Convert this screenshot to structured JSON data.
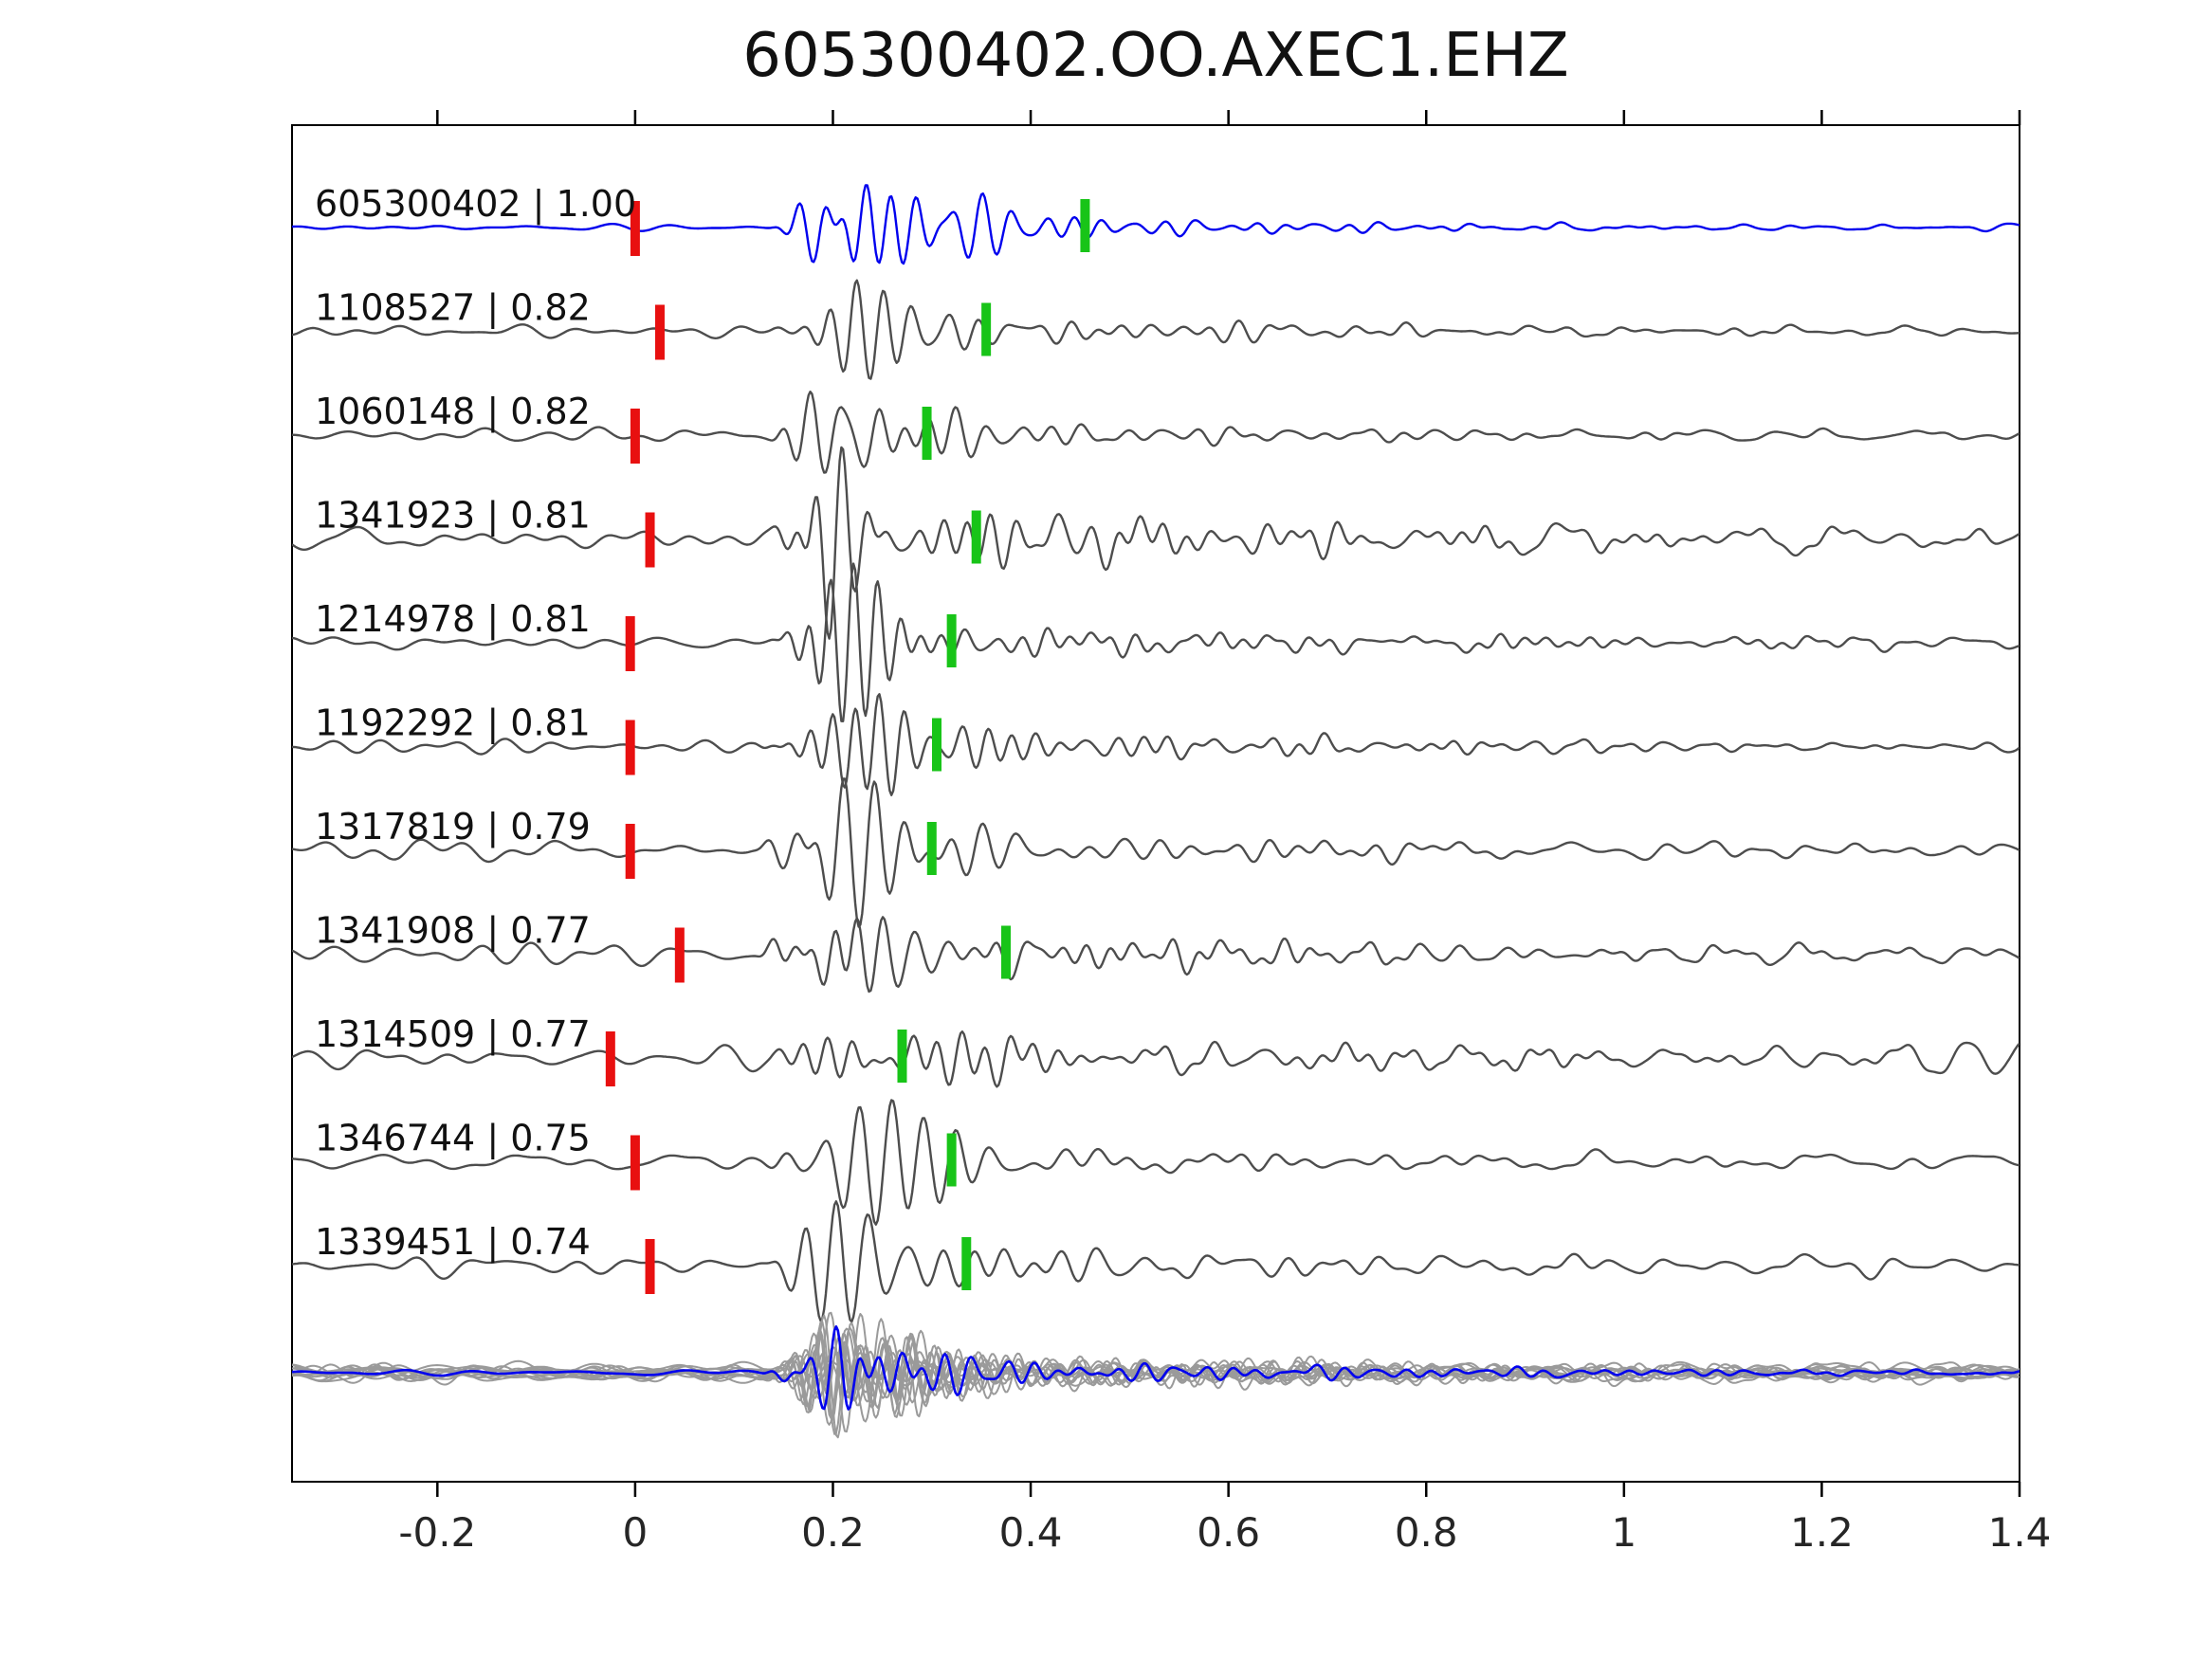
{
  "chart_data": {
    "type": "line",
    "title": "605300402.OO.AXEC1.EHZ",
    "xlabel": "",
    "ylabel": "",
    "xlim": [
      -0.347,
      1.4
    ],
    "x_ticks": [
      -0.2,
      0,
      0.2,
      0.4,
      0.6,
      0.8,
      1,
      1.2,
      1.4
    ],
    "x_tick_labels": [
      "-0.2",
      "0",
      "0.2",
      "0.4",
      "0.6",
      "0.8",
      "1",
      "1.2",
      "1.4"
    ],
    "grid": false,
    "legend": "none",
    "colors": {
      "template_trace": "#0000ee",
      "member_trace": "#4d4d4d",
      "overlay_member": "#9a9a9a",
      "red_pick": "#e81010",
      "green_pick": "#18c418",
      "axis": "#000000",
      "tick_label": "#262626"
    },
    "traces": [
      {
        "id": "605300402",
        "correlation": "1.00",
        "label": "605300402 | 1.00",
        "is_template": true,
        "red_pick": 0.0,
        "green_pick": 0.455
      },
      {
        "id": "1108527",
        "correlation": "0.82",
        "label": "1108527 | 0.82",
        "is_template": false,
        "red_pick": 0.025,
        "green_pick": 0.355
      },
      {
        "id": "1060148",
        "correlation": "0.82",
        "label": "1060148 | 0.82",
        "is_template": false,
        "red_pick": 0.0,
        "green_pick": 0.295
      },
      {
        "id": "1341923",
        "correlation": "0.81",
        "label": "1341923 | 0.81",
        "is_template": false,
        "red_pick": 0.015,
        "green_pick": 0.345
      },
      {
        "id": "1214978",
        "correlation": "0.81",
        "label": "1214978 | 0.81",
        "is_template": false,
        "red_pick": -0.005,
        "green_pick": 0.32
      },
      {
        "id": "1192292",
        "correlation": "0.81",
        "label": "1192292 | 0.81",
        "is_template": false,
        "red_pick": -0.005,
        "green_pick": 0.305
      },
      {
        "id": "1317819",
        "correlation": "0.79",
        "label": "1317819 | 0.79",
        "is_template": false,
        "red_pick": -0.005,
        "green_pick": 0.3
      },
      {
        "id": "1341908",
        "correlation": "0.77",
        "label": "1341908 | 0.77",
        "is_template": false,
        "red_pick": 0.045,
        "green_pick": 0.375
      },
      {
        "id": "1314509",
        "correlation": "0.77",
        "label": "1314509 | 0.77",
        "is_template": false,
        "red_pick": -0.025,
        "green_pick": 0.27
      },
      {
        "id": "1346744",
        "correlation": "0.75",
        "label": "1346744 | 0.75",
        "is_template": false,
        "red_pick": 0.0,
        "green_pick": 0.32
      },
      {
        "id": "1339451",
        "correlation": "0.74",
        "label": "1339451 | 0.74",
        "is_template": false,
        "red_pick": 0.015,
        "green_pick": 0.335
      }
    ],
    "overlay_stack": {
      "description": "all member waveforms overlaid in gray with blue template on top",
      "member_count": 12,
      "has_template_overlay": true
    }
  }
}
